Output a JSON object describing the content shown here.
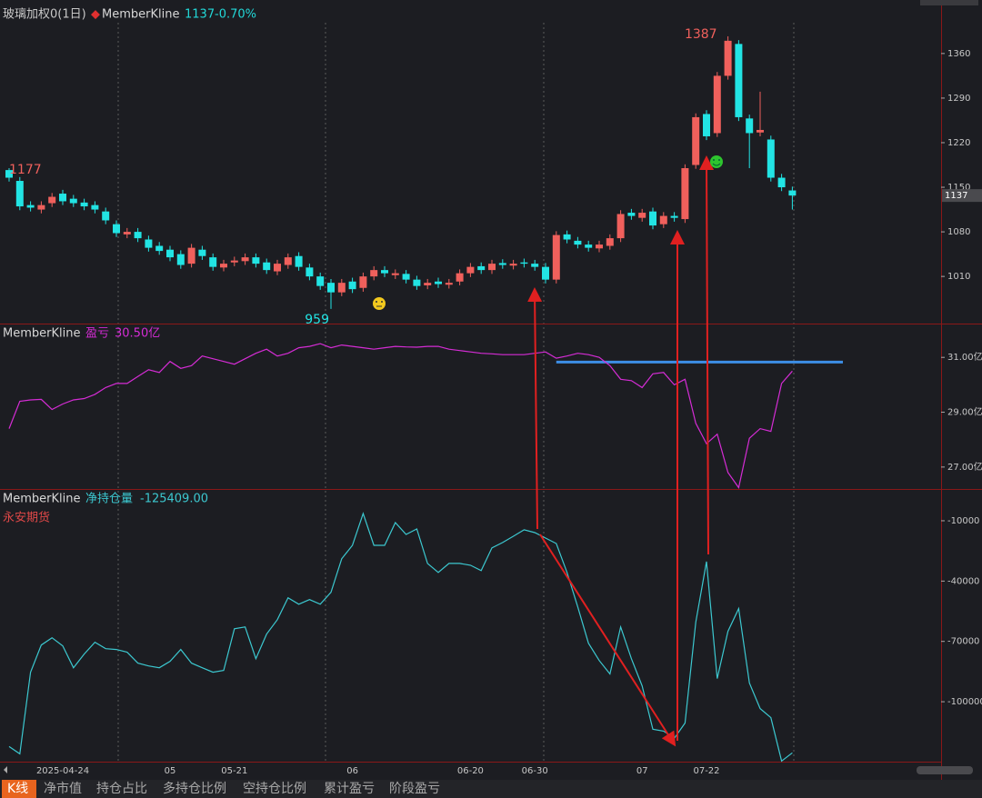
{
  "chart_data": [
    {
      "type": "candlestick",
      "title": "玻璃加权0(1日)",
      "series_name": "MemberKline",
      "last": 1137,
      "change": {
        "value": -0.7,
        "label": "-0.70%"
      },
      "categories": [
        null,
        null,
        null,
        null,
        null,
        "2025-04-24",
        null,
        null,
        null,
        null,
        null,
        null,
        null,
        null,
        null,
        "05",
        null,
        null,
        null,
        null,
        null,
        "05-21",
        null,
        null,
        null,
        null,
        null,
        null,
        null,
        null,
        null,
        null,
        "06",
        null,
        null,
        null,
        null,
        null,
        null,
        null,
        null,
        null,
        null,
        "06-20",
        null,
        null,
        null,
        null,
        null,
        "06-30",
        null,
        null,
        null,
        null,
        null,
        null,
        null,
        null,
        null,
        "07",
        null,
        null,
        null,
        null,
        null,
        "07-22",
        null,
        null,
        null,
        null,
        null,
        null,
        null,
        null
      ],
      "open": [
        1177,
        1160,
        1122,
        1115,
        1125,
        1140,
        1132,
        1126,
        1122,
        1112,
        1092,
        1076,
        1080,
        1068,
        1058,
        1052,
        1045,
        1030,
        1052,
        1040,
        1024,
        1032,
        1034,
        1040,
        1032,
        1018,
        1028,
        1042,
        1024,
        1010,
        1000,
        985,
        1002,
        992,
        1010,
        1020,
        1012,
        1014,
        1005,
        996,
        1002,
        997,
        1002,
        1015,
        1026,
        1020,
        1031,
        1027,
        1032,
        1030,
        1025,
        1005,
        1076,
        1066,
        1060,
        1054,
        1058,
        1070,
        1110,
        1102,
        1112,
        1092,
        1105,
        1100,
        1185,
        1265,
        1235,
        1325,
        1375,
        1258,
        1236,
        1225,
        1165,
        1145
      ],
      "high": [
        1180,
        1166,
        1128,
        1128,
        1141,
        1146,
        1138,
        1132,
        1128,
        1118,
        1098,
        1086,
        1086,
        1074,
        1064,
        1058,
        1051,
        1061,
        1058,
        1046,
        1036,
        1041,
        1046,
        1046,
        1038,
        1036,
        1046,
        1048,
        1030,
        1016,
        1006,
        1006,
        1008,
        1016,
        1026,
        1026,
        1021,
        1020,
        1011,
        1006,
        1008,
        1006,
        1021,
        1031,
        1032,
        1036,
        1037,
        1036,
        1038,
        1036,
        1031,
        1081,
        1082,
        1072,
        1066,
        1066,
        1076,
        1114,
        1116,
        1116,
        1118,
        1111,
        1111,
        1186,
        1266,
        1271,
        1331,
        1387,
        1381,
        1264,
        1300,
        1231,
        1171,
        1151
      ],
      "low": [
        1159,
        1114,
        1112,
        1109,
        1119,
        1122,
        1119,
        1114,
        1109,
        1092,
        1072,
        1070,
        1064,
        1049,
        1044,
        1034,
        1022,
        1024,
        1036,
        1019,
        1018,
        1026,
        1028,
        1024,
        1014,
        1012,
        1022,
        1019,
        1004,
        989,
        959,
        979,
        984,
        986,
        1004,
        1009,
        1006,
        999,
        989,
        990,
        992,
        991,
        996,
        1009,
        1014,
        1014,
        1022,
        1021,
        1024,
        1019,
        999,
        999,
        1062,
        1054,
        1049,
        1048,
        1052,
        1064,
        1099,
        1096,
        1084,
        1086,
        1096,
        1094,
        1179,
        1224,
        1229,
        1319,
        1254,
        1180,
        1230,
        1159,
        1144,
        1115
      ],
      "close": [
        1165,
        1120,
        1118,
        1122,
        1135,
        1128,
        1125,
        1120,
        1115,
        1098,
        1078,
        1080,
        1070,
        1055,
        1050,
        1040,
        1028,
        1055,
        1042,
        1025,
        1030,
        1035,
        1040,
        1030,
        1020,
        1030,
        1040,
        1025,
        1010,
        995,
        985,
        1000,
        990,
        1010,
        1020,
        1015,
        1015,
        1005,
        995,
        1000,
        998,
        1000,
        1015,
        1025,
        1020,
        1030,
        1028,
        1030,
        1030,
        1025,
        1005,
        1075,
        1068,
        1060,
        1055,
        1060,
        1070,
        1108,
        1105,
        1110,
        1090,
        1105,
        1102,
        1180,
        1260,
        1230,
        1325,
        1380,
        1260,
        1235,
        1240,
        1165,
        1150,
        1137
      ],
      "up_color": "#f0605c",
      "down_color": "#22e4e4",
      "ylim": [
        936,
        1444
      ],
      "yticks": [
        1010,
        1080,
        1150,
        1220,
        1290,
        1360
      ],
      "max_label": 1387,
      "min_label": 959,
      "open_label": 1177
    },
    {
      "type": "line",
      "series_name": "MemberKline",
      "title": "盈亏",
      "last": {
        "value": 30.5,
        "label": "30.50亿"
      },
      "color": "#d52cd5",
      "values": [
        28.4,
        29.4,
        29.45,
        29.47,
        29.1,
        29.3,
        29.45,
        29.5,
        29.65,
        29.9,
        30.05,
        30.05,
        30.3,
        30.55,
        30.45,
        30.85,
        30.6,
        30.7,
        31.05,
        30.95,
        30.85,
        30.75,
        30.95,
        31.15,
        31.3,
        31.05,
        31.15,
        31.35,
        31.4,
        31.5,
        31.35,
        31.45,
        31.4,
        31.35,
        31.3,
        31.35,
        31.4,
        31.38,
        31.37,
        31.4,
        31.4,
        31.3,
        31.25,
        31.2,
        31.15,
        31.13,
        31.1,
        31.1,
        31.1,
        31.15,
        31.2,
        30.97,
        31.05,
        31.15,
        31.1,
        31.0,
        30.7,
        30.2,
        30.15,
        29.9,
        30.4,
        30.45,
        30.0,
        30.2,
        28.6,
        27.85,
        28.2,
        26.8,
        26.25,
        28.05,
        28.4,
        28.3,
        30.05,
        30.5
      ],
      "hline": {
        "value": 30.83,
        "color": "#3d8ee6"
      },
      "ylim": [
        26.2,
        32.2
      ],
      "yticks": [
        {
          "value": 31,
          "label": "31.00亿"
        },
        {
          "value": 29,
          "label": "29.00亿"
        },
        {
          "value": 27,
          "label": "27.00亿"
        }
      ]
    },
    {
      "type": "line",
      "series_name": "MemberKline",
      "title": "净持仓量",
      "last": {
        "value": -125409,
        "label": "-125409.00"
      },
      "subtitle": "永安期货",
      "color": "#3cc8d0",
      "values": [
        -122300,
        -125900,
        -85300,
        -71800,
        -68200,
        -72200,
        -83100,
        -76300,
        -70400,
        -73600,
        -74000,
        -75400,
        -80800,
        -82200,
        -83100,
        -79900,
        -74000,
        -80800,
        -83100,
        -85300,
        -84400,
        -63700,
        -62800,
        -78600,
        -66400,
        -59200,
        -48300,
        -51500,
        -49200,
        -51500,
        -45600,
        -28900,
        -22200,
        -6400,
        -22200,
        -22200,
        -10900,
        -16800,
        -14100,
        -31200,
        -35700,
        -31200,
        -31200,
        -32100,
        -34800,
        -23500,
        -20800,
        -17700,
        -14500,
        -15900,
        -18600,
        -21300,
        -35700,
        -52800,
        -70900,
        -79500,
        -86200,
        -62800,
        -78600,
        -92100,
        -113700,
        -114600,
        -118200,
        -110600,
        -60500,
        -30300,
        -88500,
        -65000,
        -53700,
        -90700,
        -103400,
        -107900,
        -129500,
        -125409
      ],
      "ylim": [
        -129800,
        4900
      ],
      "yticks": [
        -10000,
        -40000,
        -70000,
        -100000
      ]
    }
  ],
  "tabs": [
    "K线",
    "净市值",
    "持仓占比",
    "多持仓比例",
    "空持仓比例",
    "累计盈亏",
    "阶段盈亏"
  ]
}
